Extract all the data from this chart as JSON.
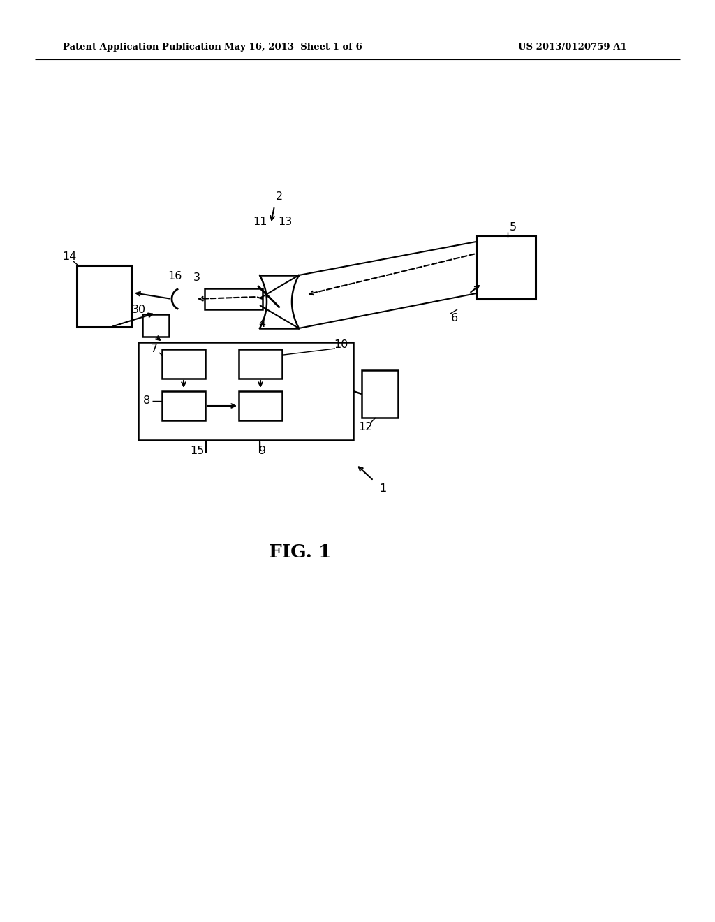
{
  "bg_color": "#ffffff",
  "line_color": "#000000",
  "header_left": "Patent Application Publication",
  "header_mid": "May 16, 2013  Sheet 1 of 6",
  "header_right": "US 2013/0120759 A1",
  "fig_label": "FIG. 1"
}
